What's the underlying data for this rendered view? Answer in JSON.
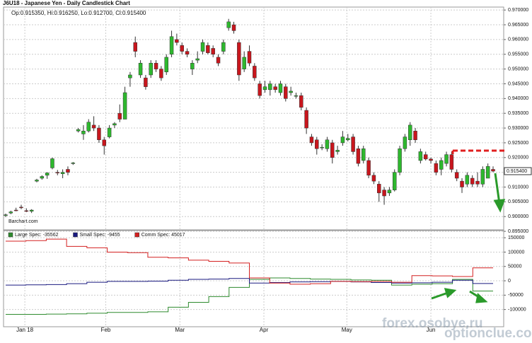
{
  "title": "J6U18 - Japanese Yen - Daily Candlestick Chart",
  "watermarks": [
    "forex.osobye.ru",
    "optionclue.com"
  ],
  "chart_data": [
    {
      "type": "candlestick",
      "info": "Op:0.915350, Hi:0.916250, Lo:0.912700, Cl:0.915400",
      "source": "Barchart.com",
      "up_color": "#2eb82e",
      "down_color": "#c8161d",
      "grid": true,
      "last_price": {
        "value": 0.9154,
        "label": "0.915400"
      },
      "open": [
        0.9004,
        0.9012,
        0.9022,
        0.9032,
        0.902,
        0.9018,
        0.912,
        0.913,
        0.914,
        0.9165,
        0.915,
        0.9145,
        0.916,
        0.918,
        0.929,
        0.928,
        0.929,
        0.931,
        0.93,
        0.926,
        0.927,
        0.931,
        0.935,
        0.933,
        0.947,
        0.959,
        0.948,
        0.947,
        0.948,
        0.952,
        0.95,
        0.949,
        0.955,
        0.96,
        0.958,
        0.956,
        0.95,
        0.953,
        0.956,
        0.958,
        0.957,
        0.954,
        0.956,
        0.964,
        0.965,
        0.959,
        0.95,
        0.956,
        0.951,
        0.945,
        0.943,
        0.943,
        0.944,
        0.942,
        0.944,
        0.942,
        0.941,
        0.941,
        0.936,
        0.927,
        0.926,
        0.9235,
        0.923,
        0.925,
        0.922,
        0.925,
        0.926,
        0.927,
        0.923,
        0.919,
        0.919,
        0.914,
        0.911,
        0.909,
        0.908,
        0.909,
        0.915,
        0.923,
        0.926,
        0.929,
        0.919,
        0.921,
        0.9195,
        0.918,
        0.916,
        0.918,
        0.921,
        0.915,
        0.912,
        0.911,
        0.913,
        0.912,
        0.911,
        0.913,
        0.916
      ],
      "high": [
        0.901,
        0.902,
        0.903,
        0.904,
        0.9028,
        0.9025,
        0.9128,
        0.914,
        0.915,
        0.92,
        0.9158,
        0.916,
        0.917,
        0.9185,
        0.93,
        0.931,
        0.933,
        0.934,
        0.931,
        0.927,
        0.931,
        0.932,
        0.938,
        0.944,
        0.949,
        0.961,
        0.953,
        0.948,
        0.953,
        0.953,
        0.951,
        0.955,
        0.963,
        0.962,
        0.959,
        0.957,
        0.953,
        0.956,
        0.96,
        0.959,
        0.958,
        0.955,
        0.96,
        0.967,
        0.966,
        0.96,
        0.956,
        0.958,
        0.952,
        0.946,
        0.946,
        0.946,
        0.945,
        0.946,
        0.945,
        0.944,
        0.942,
        0.942,
        0.937,
        0.928,
        0.927,
        0.9245,
        0.927,
        0.926,
        0.924,
        0.929,
        0.928,
        0.928,
        0.924,
        0.924,
        0.92,
        0.915,
        0.912,
        0.91,
        0.91,
        0.916,
        0.924,
        0.928,
        0.932,
        0.93,
        0.923,
        0.922,
        0.92,
        0.919,
        0.92,
        0.922,
        0.922,
        0.916,
        0.913,
        0.915,
        0.914,
        0.915,
        0.917,
        0.918,
        0.917
      ],
      "low": [
        0.8998,
        0.9008,
        0.9018,
        0.9025,
        0.9015,
        0.9012,
        0.9116,
        0.9125,
        0.9128,
        0.916,
        0.914,
        0.913,
        0.914,
        0.9175,
        0.9285,
        0.926,
        0.9285,
        0.929,
        0.925,
        0.921,
        0.9265,
        0.93,
        0.932,
        0.933,
        0.944,
        0.954,
        0.947,
        0.943,
        0.947,
        0.949,
        0.946,
        0.948,
        0.954,
        0.958,
        0.955,
        0.954,
        0.948,
        0.952,
        0.955,
        0.955,
        0.954,
        0.951,
        0.955,
        0.963,
        0.962,
        0.946,
        0.949,
        0.951,
        0.946,
        0.94,
        0.942,
        0.941,
        0.942,
        0.941,
        0.939,
        0.941,
        0.94,
        0.936,
        0.928,
        0.924,
        0.921,
        0.9225,
        0.922,
        0.918,
        0.921,
        0.924,
        0.9255,
        0.921,
        0.917,
        0.918,
        0.913,
        0.911,
        0.905,
        0.904,
        0.907,
        0.9085,
        0.914,
        0.922,
        0.924,
        0.925,
        0.918,
        0.919,
        0.918,
        0.914,
        0.914,
        0.917,
        0.915,
        0.912,
        0.908,
        0.91,
        0.91,
        0.91,
        0.91,
        0.913,
        0.915
      ],
      "close": [
        0.9006,
        0.9016,
        0.902,
        0.903,
        0.9018,
        0.9022,
        0.9124,
        0.9136,
        0.9148,
        0.9196,
        0.9148,
        0.915,
        0.915,
        0.9182,
        0.9295,
        0.929,
        0.932,
        0.93,
        0.926,
        0.924,
        0.93,
        0.9315,
        0.933,
        0.942,
        0.948,
        0.956,
        0.952,
        0.944,
        0.952,
        0.95,
        0.947,
        0.954,
        0.961,
        0.959,
        0.956,
        0.955,
        0.952,
        0.9535,
        0.959,
        0.9555,
        0.955,
        0.952,
        0.959,
        0.966,
        0.963,
        0.948,
        0.954,
        0.952,
        0.947,
        0.941,
        0.944,
        0.945,
        0.943,
        0.945,
        0.94,
        0.9425,
        0.941,
        0.937,
        0.93,
        0.925,
        0.923,
        0.9235,
        0.926,
        0.92,
        0.9225,
        0.927,
        0.9265,
        0.922,
        0.918,
        0.923,
        0.914,
        0.912,
        0.908,
        0.907,
        0.909,
        0.915,
        0.923,
        0.927,
        0.931,
        0.926,
        0.922,
        0.9195,
        0.919,
        0.915,
        0.919,
        0.921,
        0.916,
        0.913,
        0.91,
        0.914,
        0.911,
        0.911,
        0.916,
        0.917,
        0.9154
      ],
      "ylim": [
        0.8955,
        0.971
      ],
      "yticks": [
        {
          "value": 0.97,
          "label": "0.970000"
        },
        {
          "value": 0.965,
          "label": "0.965000"
        },
        {
          "value": 0.96,
          "label": "0.960000"
        },
        {
          "value": 0.955,
          "label": "0.955000"
        },
        {
          "value": 0.95,
          "label": "0.950000"
        },
        {
          "value": 0.945,
          "label": "0.945000"
        },
        {
          "value": 0.94,
          "label": "0.940000"
        },
        {
          "value": 0.935,
          "label": "0.935000"
        },
        {
          "value": 0.93,
          "label": "0.930000"
        },
        {
          "value": 0.925,
          "label": "0.925000"
        },
        {
          "value": 0.92,
          "label": "0.920000"
        },
        {
          "value": 0.915,
          "label": "0.915000"
        },
        {
          "value": 0.91,
          "label": "0.910000"
        },
        {
          "value": 0.905,
          "label": "0.905000"
        },
        {
          "value": 0.9,
          "label": "0.900000"
        },
        {
          "value": 0.895,
          "label": "0.895000"
        }
      ],
      "xlim": [
        0,
        94
      ],
      "xticks": [
        {
          "value": 3.7,
          "label": "Jan 18"
        },
        {
          "value": 19.3,
          "label": "Feb"
        },
        {
          "value": 33.6,
          "label": "Mar"
        },
        {
          "value": 49.8,
          "label": "Apr"
        },
        {
          "value": 65.8,
          "label": "May"
        },
        {
          "value": 82,
          "label": "Jun"
        }
      ]
    },
    {
      "type": "line",
      "step": true,
      "grid": true,
      "series": [
        {
          "name": "Large Spec: -35562",
          "color": "#2e8b2e",
          "values": [
            -117000,
            -117000,
            -116000,
            -115000,
            -113000,
            -110000,
            -110000,
            -108000,
            -92000,
            -75000,
            -55000,
            -23000,
            5000,
            10000,
            8000,
            6000,
            5000,
            3000,
            2000,
            -15000,
            -12000,
            -10000,
            5000,
            -35562
          ]
        },
        {
          "name": "Small Spec: -9455",
          "color": "#1a1a80",
          "values": [
            -15000,
            -14000,
            -13000,
            -10000,
            -5000,
            -2000,
            -2000,
            -1000,
            2000,
            5000,
            6000,
            8000,
            -8000,
            -6000,
            -4000,
            -3000,
            -2000,
            -4000,
            -6000,
            -8000,
            -7000,
            -5000,
            2000,
            -9455
          ]
        },
        {
          "name": "Comm Spec: 45017",
          "color": "#d42020",
          "values": [
            138000,
            140000,
            145000,
            120000,
            115000,
            100000,
            98000,
            82000,
            80000,
            72000,
            68000,
            62000,
            10000,
            -8000,
            -12000,
            -10000,
            -2000,
            -3000,
            -2000,
            -5000,
            18000,
            17000,
            15000,
            45017
          ]
        }
      ],
      "ylim": [
        -160000,
        175000
      ],
      "yticks": [
        150000,
        100000,
        50000,
        0,
        -50000,
        -100000
      ]
    }
  ]
}
